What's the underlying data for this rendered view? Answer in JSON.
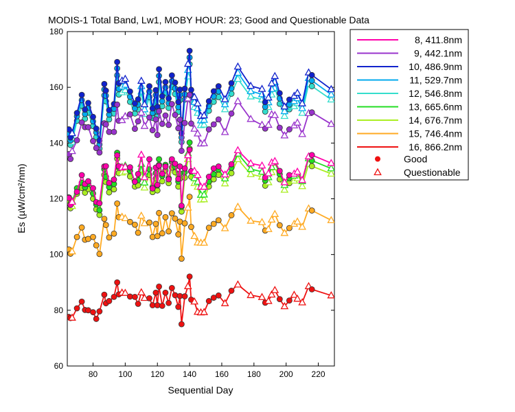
{
  "chart_data": {
    "type": "line",
    "title": "MODIS-1 Total Band,  Lw1, MOBY HOUR: 23;  Good and Questionable Data",
    "xlabel": "Sequential Day",
    "ylabel": "Es (µW/cm²/nm)",
    "xlim": [
      64,
      230
    ],
    "ylim": [
      60,
      180
    ],
    "xticks": [
      80,
      100,
      120,
      140,
      160,
      180,
      200,
      220
    ],
    "yticks": [
      60,
      80,
      100,
      120,
      140,
      160,
      180
    ],
    "grid": false,
    "legend_position": "outside-right",
    "x": [
      65,
      66,
      67,
      70,
      73,
      75,
      77,
      80,
      82,
      84,
      87,
      88,
      90,
      93,
      95,
      96,
      98,
      100,
      103,
      106,
      108,
      110,
      112,
      115,
      117,
      119,
      120,
      121,
      123,
      125,
      127,
      129,
      131,
      133,
      134,
      135,
      137,
      139,
      140,
      141,
      143,
      145,
      147,
      149,
      152,
      155,
      158,
      162,
      166,
      170,
      178,
      185,
      187,
      189,
      191,
      193,
      196,
      199,
      202,
      205,
      207,
      210,
      214,
      216,
      228
    ],
    "series": [
      {
        "name": "8, 411.8nm",
        "color": "#ff00aa",
        "values": [
          120.3,
          117.8,
          118.9,
          122.5,
          128.5,
          125.3,
          126.3,
          123.8,
          118.8,
          118.4,
          131.6,
          131.7,
          125.7,
          126.9,
          135.6,
          131.7,
          131.2,
          131.5,
          131.3,
          126.1,
          128.9,
          135.8,
          127.7,
          134.2,
          123.7,
          131.2,
          125.0,
          131.9,
          129.0,
          131.6,
          127.0,
          134.2,
          132.6,
          127.1,
          131.6,
          117.5,
          130.9,
          135.6,
          137.6,
          129.9,
          130.0,
          128.5,
          124.3,
          124.3,
          127.9,
          130.9,
          131.6,
          128.7,
          132.4,
          137.4,
          132.7,
          131.9,
          127.6,
          129.1,
          133.0,
          133.5,
          130.0,
          125.9,
          128.5,
          129.0,
          129.7,
          126.7,
          135.2,
          135.7,
          132.8
        ]
      },
      {
        "name": "9, 442.1nm",
        "color": "#9933cc",
        "values": [
          136.0,
          134.3,
          137.1,
          141.0,
          147.4,
          145.7,
          145.7,
          140.7,
          138.2,
          136.6,
          147.1,
          146.7,
          144.0,
          144.0,
          153.8,
          148.0,
          148.2,
          149.6,
          150.3,
          145.1,
          147.8,
          150.9,
          146.1,
          149.2,
          144.6,
          148.5,
          142.9,
          151.4,
          146.9,
          149.9,
          146.5,
          154.0,
          150.1,
          145.3,
          148.4,
          137.2,
          147.2,
          156.0,
          157.3,
          147.0,
          145.1,
          143.4,
          139.8,
          139.9,
          144.9,
          146.7,
          148.5,
          143.9,
          150.6,
          155.0,
          148.6,
          146.5,
          145.2,
          146.5,
          150.3,
          150.0,
          145.5,
          142.7,
          144.9,
          146.3,
          147.3,
          143.2,
          150.7,
          151.0,
          146.8
        ]
      },
      {
        "name": "10, 486.9nm",
        "color": "#1122cc",
        "values": [
          144.9,
          142.0,
          143.5,
          150.8,
          157.3,
          152.0,
          154.4,
          149.4,
          145.2,
          140.9,
          161.2,
          158.8,
          151.8,
          154.0,
          169.1,
          161.5,
          162.4,
          163.0,
          158.5,
          154.2,
          155.7,
          162.3,
          153.9,
          160.4,
          152.4,
          159.0,
          153.0,
          166.5,
          156.8,
          161.9,
          156.0,
          164.3,
          161.7,
          154.7,
          159.2,
          143.5,
          159.5,
          168.4,
          173.1,
          159.1,
          156.5,
          154.2,
          149.7,
          149.9,
          155.0,
          158.6,
          160.4,
          155.7,
          161.5,
          167.4,
          160.5,
          159.4,
          154.7,
          156.3,
          161.4,
          164.0,
          157.9,
          153.1,
          155.6,
          156.9,
          158.0,
          154.2,
          165.3,
          164.4,
          159.3
        ]
      },
      {
        "name": "11, 529.7nm",
        "color": "#00aaee",
        "values": [
          143.3,
          140.9,
          141.9,
          149.6,
          155.4,
          150.4,
          152.7,
          147.8,
          143.8,
          139.5,
          159.2,
          157.0,
          150.2,
          152.3,
          166.8,
          159.4,
          160.3,
          160.9,
          156.6,
          152.4,
          153.8,
          160.4,
          152.1,
          158.5,
          150.8,
          157.2,
          151.3,
          164.1,
          155.0,
          160.0,
          154.3,
          162.2,
          159.6,
          152.9,
          157.3,
          142.0,
          157.5,
          166.2,
          170.7,
          157.2,
          154.7,
          152.5,
          148.1,
          148.3,
          153.3,
          156.7,
          158.5,
          153.9,
          159.6,
          165.2,
          158.6,
          157.5,
          153.0,
          154.6,
          159.4,
          161.9,
          156.0,
          151.4,
          153.8,
          155.0,
          156.1,
          152.5,
          163.3,
          162.4,
          157.4
        ]
      },
      {
        "name": "12, 546.8nm",
        "color": "#33ddcc",
        "values": [
          141.5,
          139.3,
          140.4,
          148.0,
          153.4,
          148.7,
          150.9,
          146.1,
          142.1,
          138.0,
          157.1,
          155.0,
          148.5,
          150.6,
          164.3,
          157.4,
          158.2,
          159.0,
          154.8,
          150.6,
          152.1,
          158.5,
          150.4,
          156.5,
          149.0,
          155.3,
          149.6,
          161.9,
          153.2,
          158.1,
          152.6,
          160.2,
          157.6,
          151.2,
          155.4,
          140.4,
          155.6,
          163.9,
          168.3,
          155.3,
          152.9,
          150.8,
          146.4,
          146.6,
          151.6,
          154.8,
          156.5,
          152.1,
          157.7,
          163.0,
          156.7,
          155.6,
          151.3,
          152.9,
          157.4,
          159.8,
          154.1,
          149.7,
          152.1,
          153.2,
          154.3,
          150.8,
          161.2,
          160.4,
          155.6
        ]
      },
      {
        "name": "13, 665.6nm",
        "color": "#22dd22",
        "values": [
          120.5,
          118.3,
          119.1,
          123.8,
          125.8,
          124.1,
          125.4,
          121.9,
          118.0,
          115.9,
          130.6,
          127.9,
          124.2,
          125.3,
          136.5,
          131.2,
          131.4,
          131.9,
          130.0,
          126.3,
          126.7,
          132.5,
          125.8,
          130.6,
          124.2,
          129.2,
          124.8,
          134.2,
          128.2,
          132.2,
          127.4,
          133.2,
          131.5,
          126.2,
          129.1,
          117.1,
          129.5,
          136.3,
          140.2,
          129.8,
          127.4,
          126.1,
          121.4,
          121.5,
          126.2,
          128.8,
          130.5,
          127.3,
          131.1,
          136.2,
          130.7,
          129.7,
          126.5,
          127.7,
          131.4,
          133.3,
          128.8,
          124.9,
          127.4,
          128.3,
          129.1,
          126.3,
          134.5,
          133.7,
          130.9
        ]
      },
      {
        "name": "14, 676.7nm",
        "color": "#aaee22",
        "values": [
          118.6,
          116.6,
          117.4,
          121.8,
          123.9,
          122.2,
          123.5,
          120.0,
          116.2,
          114.2,
          128.6,
          126.0,
          122.3,
          123.4,
          134.4,
          129.2,
          129.4,
          129.8,
          128.0,
          124.4,
          124.8,
          130.5,
          124.0,
          128.6,
          122.4,
          127.3,
          123.0,
          132.2,
          126.3,
          130.2,
          125.6,
          131.2,
          129.5,
          124.4,
          127.2,
          115.4,
          127.6,
          134.2,
          138.0,
          127.9,
          125.6,
          124.3,
          119.7,
          119.8,
          124.4,
          127.0,
          128.6,
          125.5,
          129.2,
          134.2,
          128.8,
          127.9,
          124.7,
          125.9,
          129.5,
          131.3,
          127.0,
          123.2,
          125.6,
          126.5,
          127.3,
          124.5,
          132.5,
          131.7,
          129.0
        ]
      },
      {
        "name": "15, 746.4nm",
        "color": "#ffaa22",
        "values": [
          101.8,
          100.3,
          101.1,
          106.3,
          109.7,
          105.3,
          105.6,
          106.3,
          103.3,
          100.2,
          112.8,
          110.6,
          106.1,
          107.5,
          118.3,
          113.4,
          113.5,
          113.0,
          111.7,
          110.7,
          107.8,
          113.9,
          111.2,
          111.5,
          106.3,
          111.0,
          106.6,
          114.9,
          107.6,
          113.4,
          108.3,
          114.8,
          112.9,
          107.2,
          111.8,
          98.5,
          111.2,
          116.8,
          120.7,
          109.9,
          106.6,
          104.3,
          104.2,
          104.2,
          109.6,
          111.0,
          112.3,
          109.4,
          114.1,
          117.1,
          112.1,
          111.6,
          108.6,
          109.1,
          112.5,
          114.5,
          110.5,
          107.7,
          109.5,
          111.0,
          111.8,
          109.9,
          116.5,
          115.8,
          112.3
        ]
      },
      {
        "name": "16, 866.2nm",
        "color": "#ee1111",
        "values": [
          77.6,
          77.2,
          77.3,
          80.7,
          83.1,
          80.1,
          80.0,
          79.3,
          76.9,
          79.6,
          85.6,
          82.5,
          83.3,
          84.8,
          90.0,
          85.7,
          86.3,
          86.2,
          84.9,
          84.8,
          82.3,
          86.4,
          84.4,
          84.3,
          81.8,
          86.3,
          81.8,
          88.5,
          81.6,
          86.3,
          82.6,
          88.0,
          85.4,
          81.2,
          85.1,
          75.0,
          85.0,
          88.6,
          92.1,
          83.8,
          83.1,
          79.4,
          79.2,
          79.3,
          83.3,
          84.5,
          85.3,
          82.5,
          87.0,
          89.2,
          85.4,
          84.7,
          82.7,
          83.3,
          85.6,
          87.2,
          84.0,
          81.4,
          83.5,
          85.5,
          84.1,
          82.8,
          88.6,
          87.5,
          85.3
        ]
      }
    ],
    "point_quality": [
      "G",
      "G",
      "Q",
      "G",
      "G",
      "G",
      "G",
      "G",
      "G",
      "G",
      "G",
      "G",
      "G",
      "G",
      "G",
      "G",
      "Q",
      "Q",
      "G",
      "G",
      "G",
      "Q",
      "Q",
      "G",
      "G",
      "G",
      "G",
      "G",
      "G",
      "G",
      "G",
      "G",
      "G",
      "G",
      "G",
      "G",
      "G",
      "Q",
      "G",
      "G",
      "Q",
      "Q",
      "Q",
      "Q",
      "G",
      "G",
      "G",
      "Q",
      "G",
      "Q",
      "Q",
      "Q",
      "G",
      "Q",
      "Q",
      "Q",
      "G",
      "Q",
      "G",
      "Q",
      "Q",
      "Q",
      "Q",
      "G",
      "Q"
    ],
    "markers": [
      {
        "label": "Good",
        "shape": "circle"
      },
      {
        "label": "Questionable",
        "shape": "triangle"
      }
    ]
  }
}
